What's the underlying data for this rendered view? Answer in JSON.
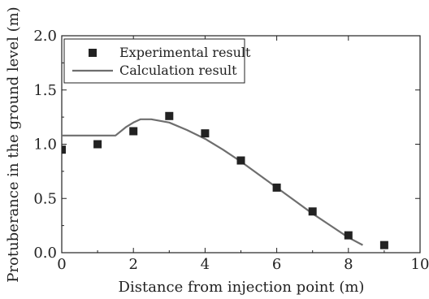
{
  "chart_data": {
    "type": "scatter",
    "xlabel": "Distance from injection point (m)",
    "ylabel": "Protuberance in the ground level (m)",
    "xlim": [
      0,
      10
    ],
    "ylim": [
      0,
      2.0
    ],
    "xticks": [
      0,
      2,
      4,
      6,
      8,
      10
    ],
    "xtick_labels": [
      "0",
      "2",
      "4",
      "6",
      "8",
      "10"
    ],
    "yticks": [
      0,
      0.5,
      1.0,
      1.5,
      2.0
    ],
    "ytick_labels": [
      "0.0",
      "0.5",
      "1.0",
      "1.5",
      "2.0"
    ],
    "grid": false,
    "legend_position": "top-left",
    "series": [
      {
        "name": "Experimental result",
        "kind": "scatter",
        "marker": "square",
        "color": "#222222",
        "x": [
          0,
          1,
          2,
          3,
          4,
          5,
          6,
          7,
          8,
          9
        ],
        "y": [
          0.95,
          1.0,
          1.12,
          1.26,
          1.1,
          0.85,
          0.6,
          0.38,
          0.16,
          0.07
        ]
      },
      {
        "name": "Calculation result",
        "kind": "line",
        "color": "#6e6e6e",
        "x": [
          0,
          1.5,
          1.8,
          2.0,
          2.2,
          2.5,
          3.0,
          3.5,
          4.0,
          4.5,
          5.0,
          5.5,
          6.0,
          6.5,
          7.0,
          7.5,
          8.0,
          8.4
        ],
        "y": [
          1.08,
          1.08,
          1.16,
          1.2,
          1.23,
          1.23,
          1.2,
          1.13,
          1.05,
          0.95,
          0.84,
          0.72,
          0.6,
          0.48,
          0.36,
          0.25,
          0.14,
          0.07
        ]
      }
    ]
  }
}
